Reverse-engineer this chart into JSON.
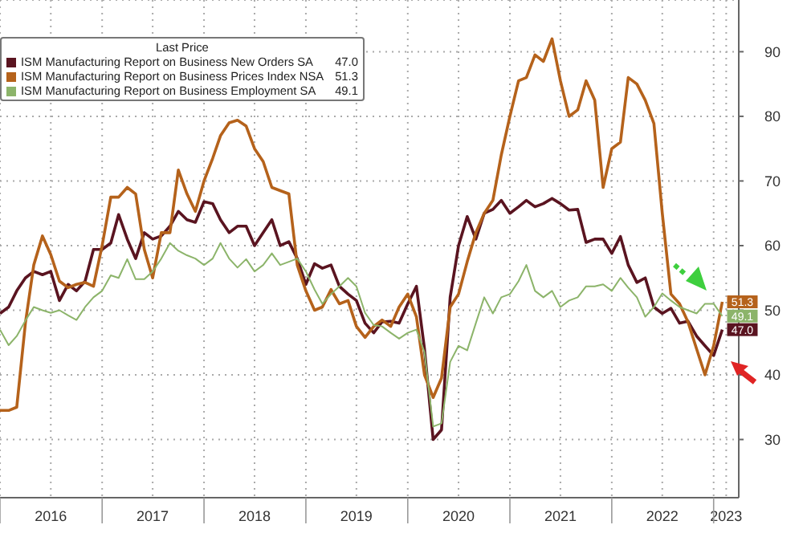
{
  "chart_data": {
    "type": "line",
    "legend_title": "Last Price",
    "legend": "top left",
    "grid": true,
    "marker": "none",
    "line_style": "solid",
    "x": [
      "2016-01",
      "2016-02",
      "2016-03",
      "2016-04",
      "2016-05",
      "2016-06",
      "2016-07",
      "2016-08",
      "2016-09",
      "2016-10",
      "2016-11",
      "2016-12",
      "2017-01",
      "2017-02",
      "2017-03",
      "2017-04",
      "2017-05",
      "2017-06",
      "2017-07",
      "2017-08",
      "2017-09",
      "2017-10",
      "2017-11",
      "2017-12",
      "2018-01",
      "2018-02",
      "2018-03",
      "2018-04",
      "2018-05",
      "2018-06",
      "2018-07",
      "2018-08",
      "2018-09",
      "2018-10",
      "2018-11",
      "2018-12",
      "2019-01",
      "2019-02",
      "2019-03",
      "2019-04",
      "2019-05",
      "2019-06",
      "2019-07",
      "2019-08",
      "2019-09",
      "2019-10",
      "2019-11",
      "2019-12",
      "2020-01",
      "2020-02",
      "2020-03",
      "2020-04",
      "2020-05",
      "2020-06",
      "2020-07",
      "2020-08",
      "2020-09",
      "2020-10",
      "2020-11",
      "2020-12",
      "2021-01",
      "2021-02",
      "2021-03",
      "2021-04",
      "2021-05",
      "2021-06",
      "2021-07",
      "2021-08",
      "2021-09",
      "2021-10",
      "2021-11",
      "2021-12",
      "2022-01",
      "2022-02",
      "2022-03",
      "2022-04",
      "2022-05",
      "2022-06",
      "2022-07",
      "2022-08",
      "2022-09",
      "2022-10",
      "2022-11",
      "2022-12",
      "2023-01",
      "2023-02"
    ],
    "xlim": [
      "2016-01",
      "2023-04"
    ],
    "xticks": [
      {
        "value": "2016-01",
        "label": null
      },
      {
        "value": "2016-07",
        "label": "2016"
      },
      {
        "value": "2017-01",
        "label": null
      },
      {
        "value": "2017-07",
        "label": "2017"
      },
      {
        "value": "2018-01",
        "label": null
      },
      {
        "value": "2018-07",
        "label": "2018"
      },
      {
        "value": "2019-01",
        "label": null
      },
      {
        "value": "2019-07",
        "label": "2019"
      },
      {
        "value": "2020-01",
        "label": null
      },
      {
        "value": "2020-07",
        "label": "2020"
      },
      {
        "value": "2021-01",
        "label": null
      },
      {
        "value": "2021-07",
        "label": "2021"
      },
      {
        "value": "2022-01",
        "label": null
      },
      {
        "value": "2022-07",
        "label": "2022"
      },
      {
        "value": "2023-01",
        "label": null
      },
      {
        "value": "2023-02-15",
        "label": "2023"
      }
    ],
    "ylim": [
      21,
      98
    ],
    "yticks": [
      30,
      40,
      50,
      60,
      70,
      80,
      90
    ],
    "series": [
      {
        "name": "ISM Manufacturing Report on Business New Orders SA",
        "color": "#5a1420",
        "values": [
          49.5,
          50.5,
          53,
          55,
          56,
          55.5,
          56,
          51.5,
          54,
          53,
          54.5,
          59.4,
          59.4,
          60.4,
          64.8,
          61,
          58,
          62,
          61,
          61.5,
          63,
          65.3,
          64,
          63.6,
          66.8,
          66.5,
          64,
          62,
          63,
          63,
          60,
          62,
          64,
          60,
          60.6,
          58,
          54,
          57.2,
          56.5,
          57,
          53.7,
          52.5,
          51.5,
          48,
          46.5,
          48.2,
          48.3,
          48,
          51,
          53.7,
          44,
          30,
          31.5,
          52,
          60,
          64.5,
          61,
          65,
          65.6,
          67,
          65,
          66,
          67,
          66,
          66.5,
          67.3,
          66.5,
          65.5,
          65.6,
          60.5,
          61,
          61,
          58.8,
          61.4,
          57,
          54.3,
          55,
          50.5,
          49.5,
          50.3,
          48,
          48.3,
          46,
          44.5,
          43,
          47.0
        ],
        "value_labels": [
          null,
          null,
          null,
          null,
          null,
          null,
          null,
          null,
          null,
          null,
          null,
          null,
          null,
          null,
          null,
          null,
          null,
          null,
          null,
          null,
          null,
          null,
          null,
          null,
          null,
          null,
          null,
          null,
          null,
          null,
          null,
          null,
          null,
          null,
          null,
          null,
          null,
          null,
          null,
          null,
          null,
          null,
          null,
          null,
          null,
          null,
          null,
          null,
          null,
          null,
          null,
          null,
          null,
          null,
          null,
          null,
          null,
          null,
          null,
          null,
          null,
          null,
          null,
          null,
          null,
          null,
          null,
          null,
          null,
          null,
          null,
          null,
          null,
          null,
          null,
          null,
          null,
          null,
          null,
          null,
          null,
          null,
          null,
          null,
          null,
          "47.0"
        ]
      },
      {
        "name": "ISM Manufacturing Report on Business Prices Index NSA",
        "color": "#b5621b",
        "values": [
          34.5,
          34.5,
          35,
          48,
          57,
          61.5,
          58.6,
          54.5,
          53.5,
          54,
          54.3,
          53.7,
          60,
          67.5,
          67.5,
          69,
          68,
          59.4,
          55,
          62,
          62,
          71.7,
          68,
          65.3,
          70,
          73.5,
          77,
          79,
          79.4,
          78.5,
          75,
          73,
          69,
          68.5,
          68,
          57,
          53,
          50,
          50.5,
          53.2,
          51,
          51.5,
          47.5,
          45.8,
          47.5,
          48.5,
          47.5,
          50.5,
          52.5,
          49,
          40,
          36.5,
          39.5,
          50.5,
          52.5,
          57.5,
          62,
          65,
          67,
          74,
          80,
          85.5,
          86,
          89.5,
          88.5,
          92,
          85.5,
          80,
          81,
          85.5,
          82.5,
          69,
          75,
          76,
          86,
          85,
          82.5,
          78.9,
          65,
          52.5,
          51,
          48.2,
          44,
          40,
          44.5,
          51.3
        ],
        "value_labels": [
          null,
          null,
          null,
          null,
          null,
          null,
          null,
          null,
          null,
          null,
          null,
          null,
          null,
          null,
          null,
          null,
          null,
          null,
          null,
          null,
          null,
          null,
          null,
          null,
          null,
          null,
          null,
          null,
          null,
          null,
          null,
          null,
          null,
          null,
          null,
          null,
          null,
          null,
          null,
          null,
          null,
          null,
          null,
          null,
          null,
          null,
          null,
          null,
          null,
          null,
          null,
          null,
          null,
          null,
          null,
          null,
          null,
          null,
          null,
          null,
          null,
          null,
          null,
          null,
          null,
          null,
          null,
          null,
          null,
          null,
          null,
          null,
          null,
          null,
          null,
          null,
          null,
          null,
          null,
          null,
          null,
          null,
          null,
          null,
          null,
          "51.3"
        ]
      },
      {
        "name": "ISM Manufacturing Report on Business Employment SA",
        "color": "#8cb46a",
        "values": [
          47,
          44.6,
          46,
          48.4,
          50.5,
          50,
          49.6,
          50,
          49.2,
          48.5,
          50.5,
          52,
          53,
          55.4,
          55,
          57.9,
          54.8,
          54.8,
          56,
          58,
          60.4,
          59.2,
          58.5,
          58,
          57,
          58,
          60.4,
          58,
          56.6,
          57.9,
          56,
          57,
          58.8,
          57,
          57.5,
          58,
          56,
          53.2,
          51,
          52.5,
          53.7,
          55,
          53.7,
          49.6,
          47.7,
          47.5,
          46.5,
          45.6,
          46.5,
          47,
          43.5,
          32,
          32.5,
          42,
          44.5,
          43.8,
          48,
          52,
          49.5,
          52,
          52.5,
          54.5,
          57,
          53,
          52,
          53,
          50.5,
          51.5,
          52,
          53.7,
          53.7,
          54,
          53,
          55,
          53.5,
          52,
          49,
          50.5,
          52.6,
          51.5,
          50.5,
          50,
          49.5,
          51,
          51,
          49.1
        ],
        "value_labels": [
          null,
          null,
          null,
          null,
          null,
          null,
          null,
          null,
          null,
          null,
          null,
          null,
          null,
          null,
          null,
          null,
          null,
          null,
          null,
          null,
          null,
          null,
          null,
          null,
          null,
          null,
          null,
          null,
          null,
          null,
          null,
          null,
          null,
          null,
          null,
          null,
          null,
          null,
          null,
          null,
          null,
          null,
          null,
          null,
          null,
          null,
          null,
          null,
          null,
          null,
          null,
          null,
          null,
          null,
          null,
          null,
          null,
          null,
          null,
          null,
          null,
          null,
          null,
          null,
          null,
          null,
          null,
          null,
          null,
          null,
          null,
          null,
          null,
          null,
          null,
          null,
          null,
          null,
          null,
          null,
          null,
          null,
          null,
          null,
          null,
          "49.1"
        ]
      }
    ]
  }
}
